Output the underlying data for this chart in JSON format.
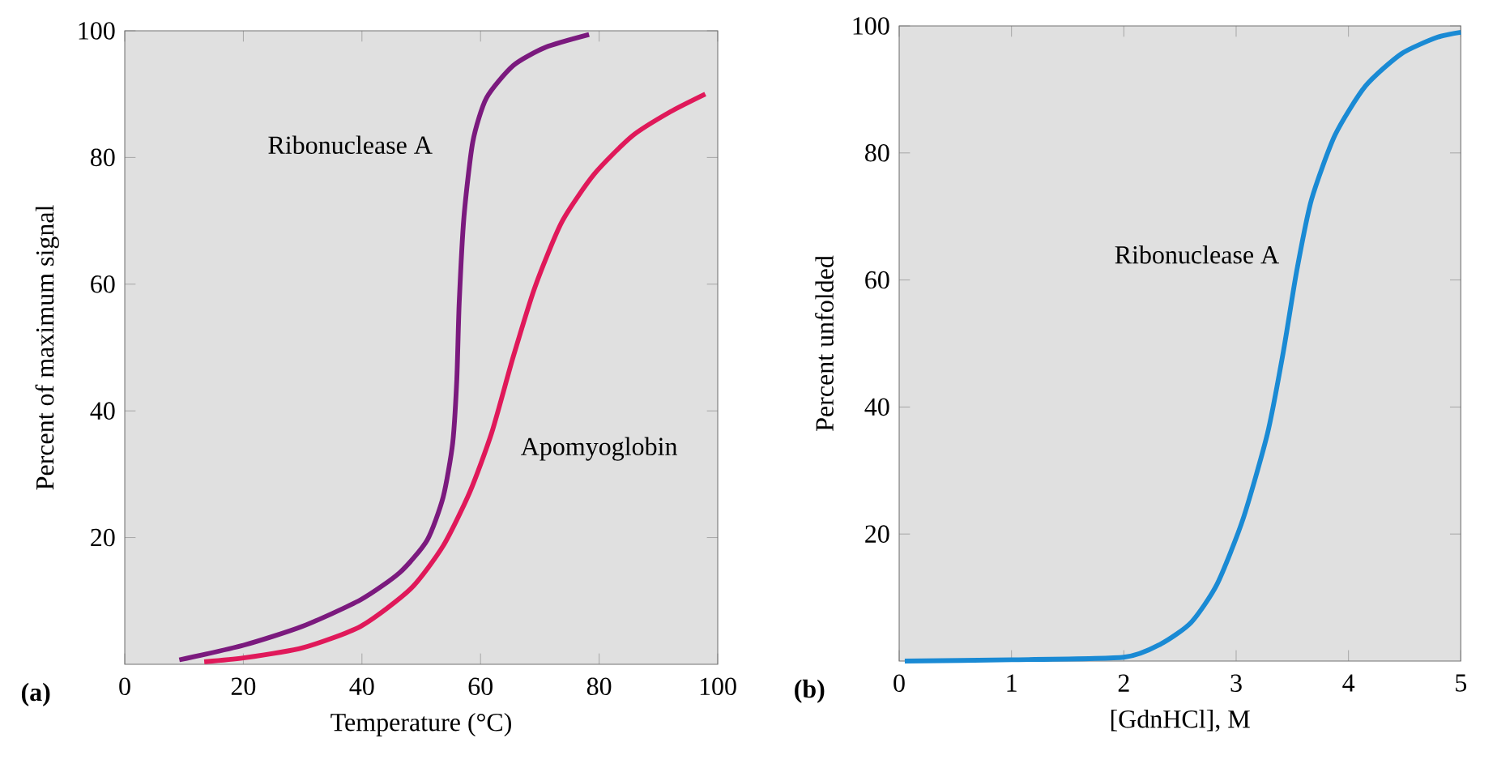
{
  "chart_data": [
    {
      "type": "line",
      "xlabel": "Temperature (°C)",
      "ylabel": "Percent of maximum signal",
      "xlim": [
        0,
        100
      ],
      "ylim": [
        0,
        100
      ],
      "xticks": [
        0,
        20,
        40,
        60,
        80,
        100
      ],
      "yticks": [
        20,
        40,
        60,
        80,
        100
      ],
      "annotations": [
        "(a)"
      ],
      "series": [
        {
          "name": "Ribonuclease A",
          "color": "#7b1a7e",
          "x": [
            9.2,
            20,
            30,
            39.8,
            46.4,
            51,
            53.7,
            55.3,
            56,
            56.4,
            57.2,
            58.7,
            61,
            65.5,
            71,
            78.3
          ],
          "values": [
            0.7,
            3.0,
            6.0,
            10.2,
            14.5,
            19.6,
            26.4,
            34.9,
            45,
            57,
            70.6,
            82.5,
            89.4,
            94.5,
            97.4,
            99.4
          ]
        },
        {
          "name": "Apomyoglobin",
          "color": "#e0195a",
          "x": [
            13.4,
            20,
            30,
            39.8,
            48.2,
            53.7,
            58.2,
            61.9,
            65.5,
            69.2,
            73.7,
            79.2,
            85.6,
            92,
            97.9
          ],
          "values": [
            0.4,
            1.0,
            2.6,
            6.0,
            11.9,
            18.7,
            27.2,
            36.6,
            48.5,
            59.6,
            69.8,
            77.4,
            83.4,
            87.2,
            90
          ]
        }
      ]
    },
    {
      "type": "line",
      "xlabel": "[GdnHCl], M",
      "ylabel": "Percent unfolded",
      "xlim": [
        0,
        5
      ],
      "ylim": [
        0,
        100
      ],
      "xticks": [
        0,
        1,
        2,
        3,
        4,
        5
      ],
      "yticks": [
        20,
        40,
        60,
        80,
        100
      ],
      "annotations": [
        "(b)"
      ],
      "series": [
        {
          "name": "Ribonuclease A",
          "color": "#1a8ad4",
          "x": [
            0.05,
            1.0,
            2.0,
            2.33,
            2.6,
            2.83,
            3.06,
            3.28,
            3.42,
            3.54,
            3.67,
            3.88,
            4.15,
            4.47,
            4.79,
            5.0
          ],
          "values": [
            0,
            0.2,
            0.6,
            2.7,
            6.1,
            12.1,
            22.3,
            35.9,
            48.7,
            61.5,
            72.6,
            82.8,
            90.5,
            95.6,
            98.2,
            99
          ]
        }
      ]
    }
  ]
}
